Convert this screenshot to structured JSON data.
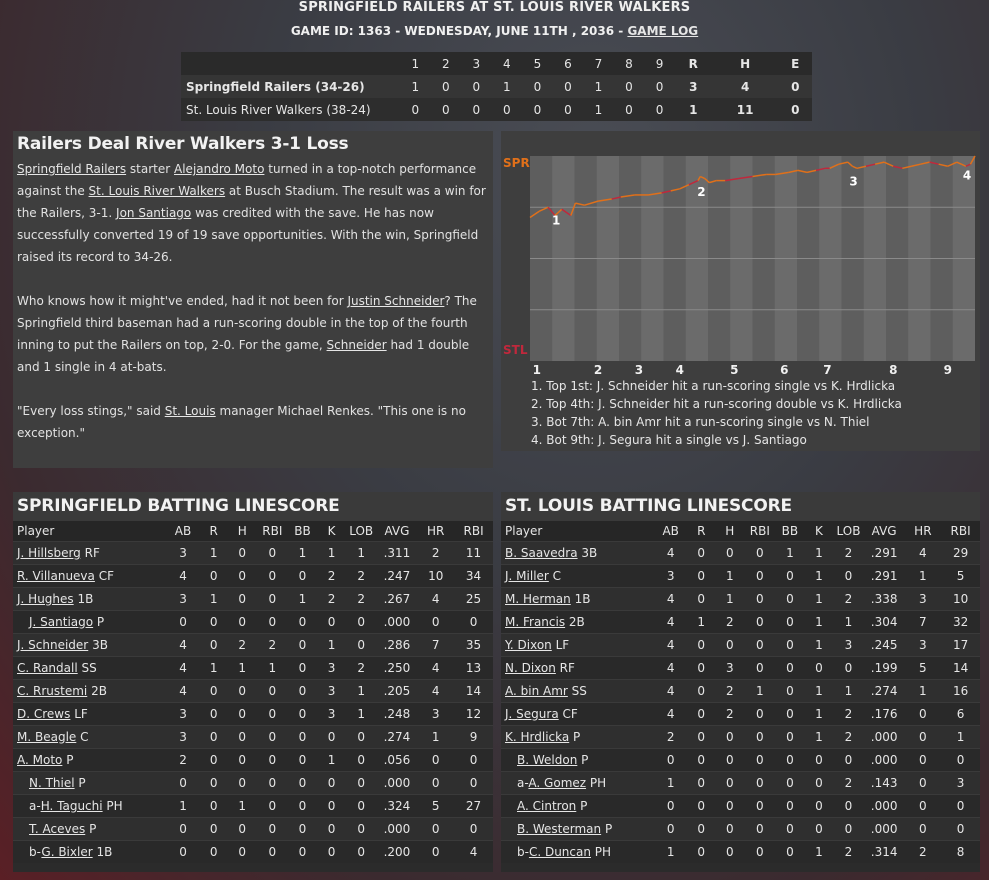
{
  "header": {
    "title": "SPRINGFIELD RAILERS AT ST. LOUIS RIVER WALKERS",
    "game_prefix": "GAME ID: 1363 - WEDNESDAY, JUNE 11TH , 2036 - ",
    "game_log_link": "GAME LOG"
  },
  "linescore": {
    "columns": [
      "1",
      "2",
      "3",
      "4",
      "5",
      "6",
      "7",
      "8",
      "9",
      "R",
      "H",
      "E"
    ],
    "rows": [
      {
        "team": "Springfield Railers (34-26)",
        "innings": [
          "1",
          "0",
          "0",
          "1",
          "0",
          "0",
          "1",
          "0",
          "0"
        ],
        "r": "3",
        "h": "4",
        "e": "0"
      },
      {
        "team": "St. Louis River Walkers (38-24)",
        "innings": [
          "0",
          "0",
          "0",
          "0",
          "0",
          "0",
          "1",
          "0",
          "0"
        ],
        "r": "1",
        "h": "11",
        "e": "0"
      }
    ]
  },
  "story": {
    "headline": "Railers Deal River Walkers 3-1 Loss",
    "p1": {
      "a": "Springfield Railers",
      "b": " starter ",
      "c": "Alejandro Moto",
      "d": " turned in a top-notch performance against the ",
      "e": "St. Louis River Walkers",
      "f": " at Busch Stadium. The result was a win for the Railers, 3-1. ",
      "g": "Jon Santiago",
      "h": " was credited with the save. He has now successfully converted 19 of 19 save opportunities. With the win, Springfield raised its record to 34-26."
    },
    "p2": {
      "a": "Who knows how it might've ended, had it not been for ",
      "b": "Justin Schneider",
      "c": "? The Springfield third baseman had a run-scoring double in the top of the fourth inning to put the Railers on top, 2-0. For the game, ",
      "d": "Schneider",
      "e": " had 1 double and 1 single in 4 at-bats."
    },
    "p3": {
      "a": "\"Every loss stings,\" said ",
      "b": "St. Louis",
      "c": " manager Michael Renkes. \"This one is no exception.\""
    }
  },
  "win_prob": {
    "top_label": "SPR",
    "bottom_label": "STL",
    "innings": [
      "1",
      "2",
      "3",
      "4",
      "5",
      "6",
      "7",
      "8",
      "9"
    ],
    "colors": {
      "spr": "#e0701a",
      "stl": "#c0283c"
    },
    "events": [
      {
        "marker": "1",
        "text": "1. Top 1st: J. Schneider hit a run-scoring single vs K. Hrdlicka"
      },
      {
        "marker": "2",
        "text": "2. Top 4th: J. Schneider hit a run-scoring double vs K. Hrdlicka"
      },
      {
        "marker": "3",
        "text": "3. Bot 7th: A. bin Amr hit a run-scoring single vs N. Thiel"
      },
      {
        "marker": "4",
        "text": "4. Bot 9th: J. Segura hit a single vs J. Santiago"
      }
    ],
    "chart_data": {
      "type": "line",
      "x": [
        0,
        0.2,
        0.4,
        0.55,
        0.7,
        0.9,
        1.0,
        1.2,
        1.5,
        1.8,
        2.0,
        2.3,
        2.6,
        2.9,
        3.1,
        3.3,
        3.5,
        3.7,
        3.75,
        3.85,
        3.95,
        4.1,
        4.3,
        4.6,
        4.9,
        5.2,
        5.4,
        5.7,
        5.9,
        6.1,
        6.3,
        6.5,
        6.6,
        6.8,
        7.0,
        7.1,
        7.2,
        7.4,
        7.6,
        7.8,
        8.0,
        8.2,
        8.4,
        8.6,
        8.8,
        9.0,
        9.2,
        9.4,
        9.5,
        9.6,
        9.7,
        9.8
      ],
      "y": [
        0.7,
        0.73,
        0.75,
        0.71,
        0.74,
        0.71,
        0.77,
        0.76,
        0.78,
        0.79,
        0.8,
        0.81,
        0.81,
        0.82,
        0.83,
        0.84,
        0.86,
        0.88,
        0.9,
        0.89,
        0.87,
        0.88,
        0.88,
        0.89,
        0.9,
        0.91,
        0.91,
        0.92,
        0.93,
        0.92,
        0.93,
        0.94,
        0.94,
        0.96,
        0.97,
        0.95,
        0.94,
        0.95,
        0.96,
        0.97,
        0.95,
        0.94,
        0.95,
        0.96,
        0.97,
        0.96,
        0.95,
        0.97,
        0.96,
        0.95,
        0.96,
        1.0
      ],
      "ylim": [
        0,
        1
      ]
    }
  },
  "spr_batting": {
    "title": "SPRINGFIELD BATTING LINESCORE",
    "headers": [
      "Player",
      "AB",
      "R",
      "H",
      "RBI",
      "BB",
      "K",
      "LOB",
      "AVG",
      "HR",
      "RBI"
    ],
    "rows": [
      {
        "prefix": "",
        "name": "J. Hillsberg",
        "pos": " RF",
        "indent": false,
        "stats": [
          "3",
          "1",
          "0",
          "0",
          "1",
          "1",
          "1",
          ".311",
          "2",
          "11"
        ]
      },
      {
        "prefix": "",
        "name": "R. Villanueva",
        "pos": " CF",
        "indent": false,
        "stats": [
          "4",
          "0",
          "0",
          "0",
          "0",
          "2",
          "2",
          ".247",
          "10",
          "34"
        ]
      },
      {
        "prefix": "",
        "name": "J. Hughes",
        "pos": " 1B",
        "indent": false,
        "stats": [
          "3",
          "1",
          "0",
          "0",
          "1",
          "2",
          "2",
          ".267",
          "4",
          "25"
        ]
      },
      {
        "prefix": "",
        "name": "J. Santiago",
        "pos": " P",
        "indent": true,
        "stats": [
          "0",
          "0",
          "0",
          "0",
          "0",
          "0",
          "0",
          ".000",
          "0",
          "0"
        ]
      },
      {
        "prefix": "",
        "name": "J. Schneider",
        "pos": " 3B",
        "indent": false,
        "stats": [
          "4",
          "0",
          "2",
          "2",
          "0",
          "1",
          "0",
          ".286",
          "7",
          "35"
        ]
      },
      {
        "prefix": "",
        "name": "C. Randall",
        "pos": " SS",
        "indent": false,
        "stats": [
          "4",
          "1",
          "1",
          "1",
          "0",
          "3",
          "2",
          ".250",
          "4",
          "13"
        ]
      },
      {
        "prefix": "",
        "name": "C. Rrustemi",
        "pos": " 2B",
        "indent": false,
        "stats": [
          "4",
          "0",
          "0",
          "0",
          "0",
          "3",
          "1",
          ".205",
          "4",
          "14"
        ]
      },
      {
        "prefix": "",
        "name": "D. Crews",
        "pos": " LF",
        "indent": false,
        "stats": [
          "3",
          "0",
          "0",
          "0",
          "0",
          "3",
          "1",
          ".248",
          "3",
          "12"
        ]
      },
      {
        "prefix": "",
        "name": "M. Beagle",
        "pos": " C",
        "indent": false,
        "stats": [
          "3",
          "0",
          "0",
          "0",
          "0",
          "0",
          "0",
          ".274",
          "1",
          "9"
        ]
      },
      {
        "prefix": "",
        "name": "A. Moto",
        "pos": " P",
        "indent": false,
        "stats": [
          "2",
          "0",
          "0",
          "0",
          "0",
          "1",
          "0",
          ".056",
          "0",
          "0"
        ]
      },
      {
        "prefix": "",
        "name": "N. Thiel",
        "pos": " P",
        "indent": true,
        "stats": [
          "0",
          "0",
          "0",
          "0",
          "0",
          "0",
          "0",
          ".000",
          "0",
          "0"
        ]
      },
      {
        "prefix": "a-",
        "name": "H. Taguchi",
        "pos": " PH",
        "indent": true,
        "stats": [
          "1",
          "0",
          "1",
          "0",
          "0",
          "0",
          "0",
          ".324",
          "5",
          "27"
        ]
      },
      {
        "prefix": "",
        "name": "T. Aceves",
        "pos": " P",
        "indent": true,
        "stats": [
          "0",
          "0",
          "0",
          "0",
          "0",
          "0",
          "0",
          ".000",
          "0",
          "0"
        ]
      },
      {
        "prefix": "b-",
        "name": "G. Bixler",
        "pos": " 1B",
        "indent": true,
        "stats": [
          "0",
          "0",
          "0",
          "0",
          "0",
          "0",
          "0",
          ".200",
          "0",
          "4"
        ]
      }
    ]
  },
  "stl_batting": {
    "title": "ST. LOUIS BATTING LINESCORE",
    "headers": [
      "Player",
      "AB",
      "R",
      "H",
      "RBI",
      "BB",
      "K",
      "LOB",
      "AVG",
      "HR",
      "RBI"
    ],
    "rows": [
      {
        "prefix": "",
        "name": "B. Saavedra",
        "pos": " 3B",
        "indent": false,
        "stats": [
          "4",
          "0",
          "0",
          "0",
          "1",
          "1",
          "2",
          ".291",
          "4",
          "29"
        ]
      },
      {
        "prefix": "",
        "name": "J. Miller",
        "pos": " C",
        "indent": false,
        "stats": [
          "3",
          "0",
          "1",
          "0",
          "0",
          "1",
          "0",
          ".291",
          "1",
          "5"
        ]
      },
      {
        "prefix": "",
        "name": "M. Herman",
        "pos": " 1B",
        "indent": false,
        "stats": [
          "4",
          "0",
          "1",
          "0",
          "0",
          "1",
          "2",
          ".338",
          "3",
          "10"
        ]
      },
      {
        "prefix": "",
        "name": "M. Francis",
        "pos": " 2B",
        "indent": false,
        "stats": [
          "4",
          "1",
          "2",
          "0",
          "0",
          "1",
          "1",
          ".304",
          "7",
          "32"
        ]
      },
      {
        "prefix": "",
        "name": "Y. Dixon",
        "pos": " LF",
        "indent": false,
        "stats": [
          "4",
          "0",
          "0",
          "0",
          "0",
          "1",
          "3",
          ".245",
          "3",
          "17"
        ]
      },
      {
        "prefix": "",
        "name": "N. Dixon",
        "pos": " RF",
        "indent": false,
        "stats": [
          "4",
          "0",
          "3",
          "0",
          "0",
          "0",
          "0",
          ".199",
          "5",
          "14"
        ]
      },
      {
        "prefix": "",
        "name": "A. bin Amr",
        "pos": " SS",
        "indent": false,
        "stats": [
          "4",
          "0",
          "2",
          "1",
          "0",
          "1",
          "1",
          ".274",
          "1",
          "16"
        ]
      },
      {
        "prefix": "",
        "name": "J. Segura",
        "pos": " CF",
        "indent": false,
        "stats": [
          "4",
          "0",
          "2",
          "0",
          "0",
          "1",
          "2",
          ".176",
          "0",
          "6"
        ]
      },
      {
        "prefix": "",
        "name": "K. Hrdlicka",
        "pos": " P",
        "indent": false,
        "stats": [
          "2",
          "0",
          "0",
          "0",
          "0",
          "1",
          "2",
          ".000",
          "0",
          "1"
        ]
      },
      {
        "prefix": "",
        "name": "B. Weldon",
        "pos": " P",
        "indent": true,
        "stats": [
          "0",
          "0",
          "0",
          "0",
          "0",
          "0",
          "0",
          ".000",
          "0",
          "0"
        ]
      },
      {
        "prefix": "a-",
        "name": "A. Gomez",
        "pos": " PH",
        "indent": true,
        "stats": [
          "1",
          "0",
          "0",
          "0",
          "0",
          "0",
          "2",
          ".143",
          "0",
          "3"
        ]
      },
      {
        "prefix": "",
        "name": "A. Cintron",
        "pos": " P",
        "indent": true,
        "stats": [
          "0",
          "0",
          "0",
          "0",
          "0",
          "0",
          "0",
          ".000",
          "0",
          "0"
        ]
      },
      {
        "prefix": "",
        "name": "B. Westerman",
        "pos": " P",
        "indent": true,
        "stats": [
          "0",
          "0",
          "0",
          "0",
          "0",
          "0",
          "0",
          ".000",
          "0",
          "0"
        ]
      },
      {
        "prefix": "b-",
        "name": "C. Duncan",
        "pos": " PH",
        "indent": true,
        "stats": [
          "1",
          "0",
          "0",
          "0",
          "0",
          "1",
          "2",
          ".314",
          "2",
          "8"
        ]
      }
    ]
  }
}
